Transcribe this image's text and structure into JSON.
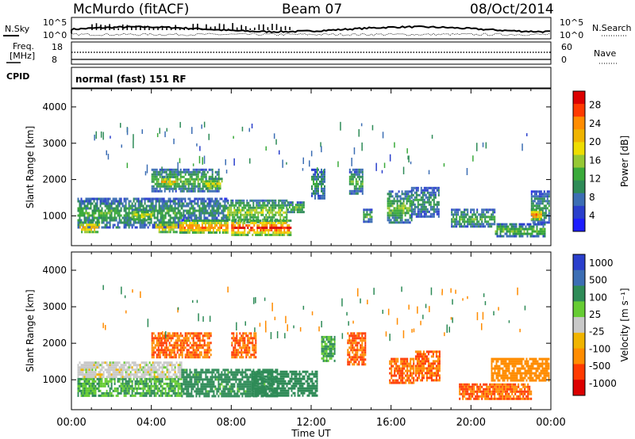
{
  "header": {
    "station": "McMurdo (fitACF)",
    "beam": "Beam 07",
    "date": "08/Oct/2014"
  },
  "panels": {
    "nsky_label": "N.Sky",
    "nsky_ticks": [
      "10^5",
      "10^0"
    ],
    "nsearch_label": "N.Search",
    "freq_label_line1": "Freq.",
    "freq_label_line2": "[MHz]",
    "freq_ticks": [
      "18",
      "8"
    ],
    "nave_label": "Nave",
    "nave_ticks": [
      "60",
      "0"
    ],
    "cpid_label": "CPID",
    "cpid_value": "normal (fast) 151 RF"
  },
  "chart_data": [
    {
      "type": "heatmap",
      "name": "power",
      "ylabel": "Slant Range [km]",
      "xlabel": "",
      "xlim": [
        "00:00",
        "24:00"
      ],
      "ylim": [
        180,
        4500
      ],
      "y_ticks": [
        1000,
        2000,
        3000,
        4000
      ],
      "colorbar": {
        "label": "Power [dB]",
        "ticks": [
          "28",
          "24",
          "20",
          "16",
          "12",
          "8",
          "4"
        ],
        "colors": [
          "#dc0000",
          "#ff3a00",
          "#ff8c00",
          "#f0b400",
          "#eedd00",
          "#96c834",
          "#3aaa3a",
          "#2e8b57",
          "#3c6eb4",
          "#2a3fcc",
          "#1e1eff"
        ]
      },
      "regions": [
        {
          "t": [
            0.3,
            5.5
          ],
          "r": [
            700,
            1500
          ],
          "value": 12
        },
        {
          "t": [
            5.5,
            7.8
          ],
          "r": [
            900,
            1500
          ],
          "value": 10
        },
        {
          "t": [
            7.8,
            10.8
          ],
          "r": [
            800,
            1450
          ],
          "value": 16
        },
        {
          "t": [
            8.0,
            11.0
          ],
          "r": [
            500,
            900
          ],
          "value": 30
        },
        {
          "t": [
            0.4,
            1.4
          ],
          "r": [
            550,
            850
          ],
          "value": 24
        },
        {
          "t": [
            3.0,
            4.0
          ],
          "r": [
            900,
            1200
          ],
          "value": 18
        },
        {
          "t": [
            4.2,
            5.3
          ],
          "r": [
            550,
            850
          ],
          "value": 22
        },
        {
          "t": [
            5.4,
            7.8
          ],
          "r": [
            550,
            900
          ],
          "value": 26
        },
        {
          "t": [
            4.0,
            7.4
          ],
          "r": [
            1700,
            2300
          ],
          "value": 14
        },
        {
          "t": [
            4.5,
            5.2
          ],
          "r": [
            1850,
            2100
          ],
          "value": 22
        },
        {
          "t": [
            6.7,
            7.5
          ],
          "r": [
            1750,
            2050
          ],
          "value": 20
        },
        {
          "t": [
            10.8,
            11.6
          ],
          "r": [
            1100,
            1400
          ],
          "value": 14
        },
        {
          "t": [
            12.0,
            12.7
          ],
          "r": [
            1500,
            2300
          ],
          "value": 10
        },
        {
          "t": [
            13.9,
            14.6
          ],
          "r": [
            1600,
            2300
          ],
          "value": 12
        },
        {
          "t": [
            14.6,
            15.0
          ],
          "r": [
            850,
            1200
          ],
          "value": 12
        },
        {
          "t": [
            15.8,
            17.0
          ],
          "r": [
            800,
            1700
          ],
          "value": 14
        },
        {
          "t": [
            17.0,
            18.4
          ],
          "r": [
            1000,
            1800
          ],
          "value": 10
        },
        {
          "t": [
            19.0,
            21.2
          ],
          "r": [
            700,
            1200
          ],
          "value": 12
        },
        {
          "t": [
            21.2,
            23.7
          ],
          "r": [
            450,
            800
          ],
          "value": 14
        },
        {
          "t": [
            23.0,
            23.9
          ],
          "r": [
            800,
            1700
          ],
          "value": 10
        },
        {
          "t": [
            23.0,
            23.5
          ],
          "r": [
            900,
            1200
          ],
          "value": 26
        }
      ]
    },
    {
      "type": "heatmap",
      "name": "velocity",
      "ylabel": "Slant Range [km]",
      "xlabel": "Time UT",
      "xlim": [
        "00:00",
        "24:00"
      ],
      "x_ticks": [
        "00:00",
        "04:00",
        "08:00",
        "12:00",
        "16:00",
        "20:00",
        "00:00"
      ],
      "ylim": [
        180,
        4500
      ],
      "y_ticks": [
        1000,
        2000,
        3000,
        4000
      ],
      "colorbar": {
        "label": "Velocity [m s⁻¹]",
        "ticks": [
          "1000",
          "500",
          "100",
          "25",
          "-25",
          "-100",
          "-500",
          "-1000"
        ],
        "colors": [
          "#2a3fcc",
          "#3c6eb4",
          "#2e8b57",
          "#66cc33",
          "#c8c8c8",
          "#f0b400",
          "#ff8c00",
          "#ff3a00",
          "#dc0000"
        ]
      },
      "regions": [
        {
          "t": [
            0.3,
            5.5
          ],
          "r": [
            550,
            1050
          ],
          "value": 100
        },
        {
          "t": [
            0.3,
            5.5
          ],
          "r": [
            1050,
            1500
          ],
          "value": 0
        },
        {
          "t": [
            5.5,
            10.3
          ],
          "r": [
            550,
            1300
          ],
          "value": 200
        },
        {
          "t": [
            4.0,
            7.0
          ],
          "r": [
            1600,
            2300
          ],
          "value": -500
        },
        {
          "t": [
            8.0,
            9.2
          ],
          "r": [
            1600,
            2300
          ],
          "value": -500
        },
        {
          "t": [
            9.0,
            12.3
          ],
          "r": [
            550,
            1250
          ],
          "value": 300
        },
        {
          "t": [
            12.5,
            13.2
          ],
          "r": [
            1500,
            2200
          ],
          "value": 100
        },
        {
          "t": [
            13.8,
            14.7
          ],
          "r": [
            1400,
            2300
          ],
          "value": -500
        },
        {
          "t": [
            15.9,
            17.1
          ],
          "r": [
            900,
            1600
          ],
          "value": -500
        },
        {
          "t": [
            17.2,
            18.4
          ],
          "r": [
            1000,
            1800
          ],
          "value": -500
        },
        {
          "t": [
            19.4,
            23.0
          ],
          "r": [
            500,
            900
          ],
          "value": -500
        },
        {
          "t": [
            21.0,
            23.9
          ],
          "r": [
            1000,
            1600
          ],
          "value": -300
        }
      ]
    }
  ]
}
